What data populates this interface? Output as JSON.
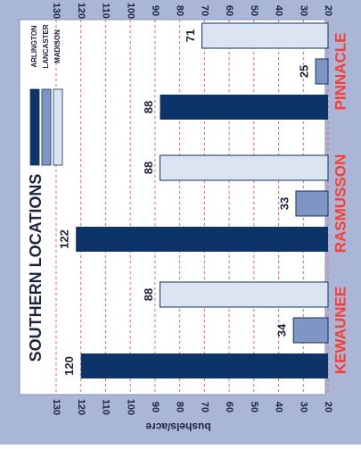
{
  "colors": {
    "frame": "#a9b6d5",
    "plot_bg": "#ffffff",
    "gridline": "#ff5b5b",
    "axis_text": "#1d2340",
    "category_text": "#ff3b2f",
    "arlington": "#0c3468",
    "lancaster": "#7f96c4",
    "madison": "#dde4f1",
    "bar_stroke": "#0c3468"
  },
  "chart_data": {
    "type": "bar",
    "orientation": "rotated-90-clockwise",
    "title": "SOUTHERN LOCATIONS",
    "ylabel": "bushels/acre",
    "ylim": [
      20,
      130
    ],
    "yticks": [
      20,
      30,
      40,
      50,
      60,
      70,
      80,
      90,
      100,
      110,
      120,
      130
    ],
    "ytick_labels": [
      "20",
      "30",
      "40",
      "50",
      "60",
      "70",
      "80",
      "90",
      "100",
      "110",
      "120",
      "130"
    ],
    "gridlines": "dashed",
    "categories": [
      "KEWAUNEE",
      "RASMUSSON",
      "PINNACLE"
    ],
    "series": [
      {
        "name": "ARLINGTON",
        "values": [
          120,
          122,
          88
        ],
        "labels": [
          "120",
          "122",
          "88"
        ]
      },
      {
        "name": "LANCASTER",
        "values": [
          34,
          33,
          25
        ],
        "labels": [
          "34",
          "33",
          "25"
        ]
      },
      {
        "name": "MADISON",
        "values": [
          88,
          88,
          71
        ],
        "labels": [
          "88",
          "88",
          "71"
        ]
      }
    ],
    "legend_placement": "top-left"
  }
}
